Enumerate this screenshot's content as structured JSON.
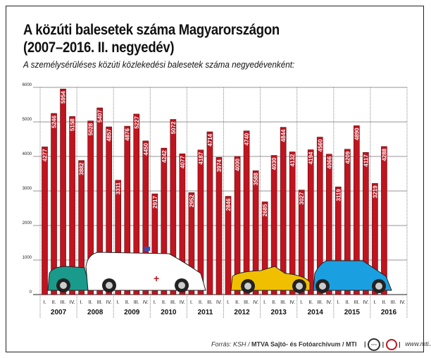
{
  "chart_data": {
    "type": "bar",
    "title": "A közúti balesetek száma Magyarországon",
    "title_line2": "(2007–2016. II. negyedév)",
    "subtitle": "A személysérüléses közúti közlekedési balesetek száma negyedévenként:",
    "years": [
      "2007",
      "2008",
      "2009",
      "2010",
      "2011",
      "2012",
      "2013",
      "2014",
      "2015",
      "2016"
    ],
    "quarters": [
      "I.",
      "II.",
      "III.",
      "IV."
    ],
    "values": [
      4277,
      5246,
      5954,
      5158,
      3882,
      5028,
      5407,
      4857,
      3311,
      4876,
      5227,
      4450,
      2917,
      4242,
      5072,
      4077,
      2952,
      4187,
      4714,
      3974,
      2846,
      4000,
      4740,
      3588,
      2685,
      4030,
      4844,
      4132,
      3027,
      4194,
      4560,
      4066,
      3119,
      4209,
      4890,
      4117,
      3219,
      4288,
      null,
      null
    ],
    "yticks": [
      "0",
      "1000",
      "2000",
      "3000",
      "4000",
      "5000",
      "6000"
    ],
    "ylim": [
      0,
      6000
    ],
    "grid": true,
    "bar_color": "#c0141f"
  },
  "footer": {
    "source_prefix": "Forrás: KSH / ",
    "source_bold": "MTVA Sajtó- és Fotóarchívum / MTI",
    "logo1": "MTVA",
    "website": "www.mti.hu"
  }
}
